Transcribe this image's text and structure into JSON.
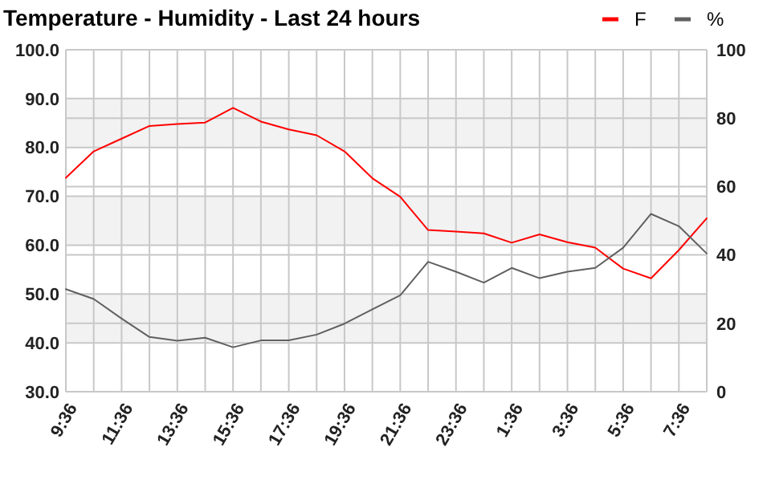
{
  "chart_data": {
    "type": "line",
    "title": "Temperature - Humidity - Last 24 hours",
    "categories": [
      "9:36",
      null,
      "11:36",
      null,
      "13:36",
      null,
      "15:36",
      null,
      "17:36",
      null,
      "19:36",
      null,
      "21:36",
      null,
      "23:36",
      null,
      "1:36",
      null,
      "3:36",
      null,
      "5:36",
      null,
      "7:36",
      null
    ],
    "series": [
      {
        "name": "F",
        "color": "#ff0000",
        "values": [
          73.8,
          79.2,
          81.8,
          84.4,
          84.8,
          85.1,
          88.1,
          85.3,
          83.7,
          82.5,
          79.2,
          73.7,
          69.9,
          63.1,
          62.8,
          62.4,
          60.5,
          62.2,
          60.6,
          59.5,
          55.2,
          53.2,
          59.0,
          65.5
        ]
      },
      {
        "name": "%",
        "color": "#606060",
        "axis": "y2",
        "values": [
          30.0,
          27.1,
          21.4,
          16.0,
          14.9,
          15.8,
          13.0,
          15.0,
          15.0,
          16.7,
          19.9,
          24.1,
          28.2,
          38.0,
          35.1,
          31.9,
          36.2,
          33.2,
          35.1,
          36.2,
          42.1,
          52.0,
          48.4,
          40.4
        ]
      }
    ],
    "ylim": [
      30,
      100
    ],
    "yticks": [
      {
        "value": 30,
        "label": "30.0"
      },
      {
        "value": 40,
        "label": "40.0"
      },
      {
        "value": 50,
        "label": "50.0"
      },
      {
        "value": 60,
        "label": "60.0"
      },
      {
        "value": 70,
        "label": "70.0"
      },
      {
        "value": 80,
        "label": "80.0"
      },
      {
        "value": 90,
        "label": "90.0"
      },
      {
        "value": 100,
        "label": "100.0"
      }
    ],
    "y2lim": [
      0,
      100
    ],
    "y2ticks": [
      0,
      20,
      40,
      60,
      80,
      100
    ],
    "bands": [
      {
        "axis": "y",
        "from": 40,
        "to": 50,
        "color": "#f2f2f2"
      },
      {
        "axis": "y",
        "from": 60,
        "to": 70,
        "color": "#f2f2f2"
      },
      {
        "axis": "y",
        "from": 80,
        "to": 90,
        "color": "#f2f2f2"
      }
    ],
    "grid": true,
    "legend": "top right",
    "marker": "none",
    "line_style": "solid"
  }
}
